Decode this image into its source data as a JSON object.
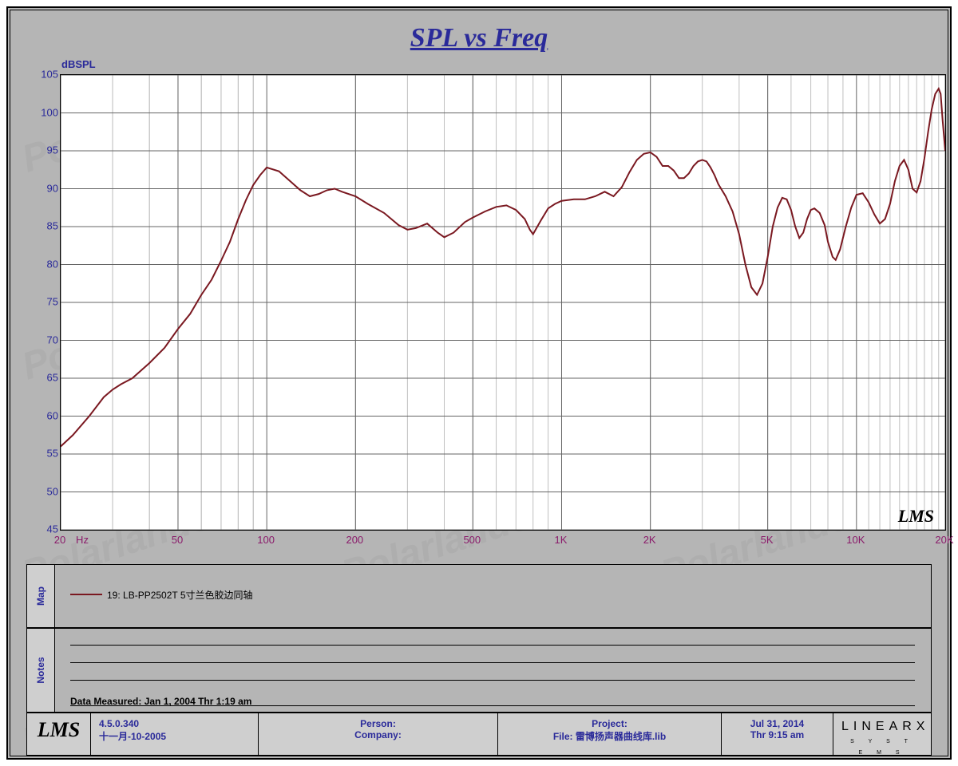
{
  "title": "SPL vs Freq",
  "title_color": "#2a2a9a",
  "title_fontsize": 34,
  "watermark_text": "Polarlander",
  "watermark_color": "rgba(120,120,120,.10)",
  "chart": {
    "type": "line",
    "background_color": "#ffffff",
    "frame_background": "#b5b5b5",
    "grid_color_major": "#646464",
    "grid_color_minor": "#bfbfbf",
    "line_color": "#7a1820",
    "line_width": 2,
    "y_axis": {
      "unit": "dBSPL",
      "min": 45,
      "max": 105,
      "tick_step": 5,
      "ticks": [
        45,
        50,
        55,
        60,
        65,
        70,
        75,
        80,
        85,
        90,
        95,
        100,
        105
      ],
      "label_color": "#2a2a9a",
      "label_fontsize": 13
    },
    "x_axis": {
      "unit": "Hz",
      "scale": "log",
      "min": 20,
      "max": 20000,
      "major_ticks": [
        20,
        50,
        100,
        200,
        500,
        1000,
        2000,
        5000,
        10000,
        20000
      ],
      "major_labels": [
        "20",
        "50",
        "100",
        "200",
        "500",
        "1K",
        "2K",
        "5K",
        "10K",
        "20K"
      ],
      "label_color": "#8a1a6a",
      "label_fontsize": 13
    },
    "series": [
      {
        "name": "19: LB-PP2502T 5寸兰色胶边同轴",
        "color": "#7a1820",
        "points": [
          [
            20,
            56
          ],
          [
            22,
            57.5
          ],
          [
            25,
            60
          ],
          [
            28,
            62.5
          ],
          [
            30,
            63.5
          ],
          [
            32,
            64.2
          ],
          [
            35,
            65
          ],
          [
            40,
            67
          ],
          [
            45,
            69
          ],
          [
            50,
            71.5
          ],
          [
            55,
            73.5
          ],
          [
            60,
            76
          ],
          [
            65,
            78
          ],
          [
            70,
            80.5
          ],
          [
            75,
            83
          ],
          [
            80,
            86
          ],
          [
            85,
            88.5
          ],
          [
            90,
            90.5
          ],
          [
            95,
            91.8
          ],
          [
            100,
            92.8
          ],
          [
            110,
            92.3
          ],
          [
            120,
            91
          ],
          [
            130,
            89.8
          ],
          [
            140,
            89
          ],
          [
            150,
            89.3
          ],
          [
            160,
            89.8
          ],
          [
            170,
            90
          ],
          [
            180,
            89.6
          ],
          [
            200,
            89
          ],
          [
            220,
            88
          ],
          [
            250,
            86.8
          ],
          [
            280,
            85.2
          ],
          [
            300,
            84.6
          ],
          [
            320,
            84.8
          ],
          [
            350,
            85.4
          ],
          [
            380,
            84.2
          ],
          [
            400,
            83.6
          ],
          [
            430,
            84.2
          ],
          [
            470,
            85.6
          ],
          [
            500,
            86.2
          ],
          [
            550,
            87
          ],
          [
            600,
            87.6
          ],
          [
            650,
            87.8
          ],
          [
            700,
            87.2
          ],
          [
            750,
            86
          ],
          [
            780,
            84.6
          ],
          [
            800,
            84
          ],
          [
            850,
            85.8
          ],
          [
            900,
            87.4
          ],
          [
            950,
            88
          ],
          [
            1000,
            88.4
          ],
          [
            1100,
            88.6
          ],
          [
            1200,
            88.6
          ],
          [
            1300,
            89
          ],
          [
            1400,
            89.6
          ],
          [
            1500,
            89
          ],
          [
            1600,
            90.2
          ],
          [
            1700,
            92.2
          ],
          [
            1800,
            93.8
          ],
          [
            1900,
            94.6
          ],
          [
            2000,
            94.8
          ],
          [
            2100,
            94.2
          ],
          [
            2200,
            93
          ],
          [
            2300,
            93
          ],
          [
            2400,
            92.4
          ],
          [
            2500,
            91.4
          ],
          [
            2600,
            91.4
          ],
          [
            2700,
            92
          ],
          [
            2800,
            93
          ],
          [
            2900,
            93.6
          ],
          [
            3000,
            93.8
          ],
          [
            3100,
            93.6
          ],
          [
            3200,
            92.8
          ],
          [
            3300,
            91.8
          ],
          [
            3400,
            90.6
          ],
          [
            3600,
            89
          ],
          [
            3800,
            87
          ],
          [
            4000,
            84
          ],
          [
            4200,
            80
          ],
          [
            4400,
            77
          ],
          [
            4600,
            76
          ],
          [
            4800,
            77.5
          ],
          [
            5000,
            81
          ],
          [
            5200,
            85
          ],
          [
            5400,
            87.5
          ],
          [
            5600,
            88.8
          ],
          [
            5800,
            88.6
          ],
          [
            6000,
            87.2
          ],
          [
            6200,
            85
          ],
          [
            6400,
            83.5
          ],
          [
            6600,
            84.2
          ],
          [
            6800,
            86
          ],
          [
            7000,
            87.2
          ],
          [
            7200,
            87.4
          ],
          [
            7500,
            86.8
          ],
          [
            7800,
            85.2
          ],
          [
            8000,
            83
          ],
          [
            8300,
            81
          ],
          [
            8500,
            80.6
          ],
          [
            8800,
            82
          ],
          [
            9200,
            85
          ],
          [
            9600,
            87.5
          ],
          [
            10000,
            89.2
          ],
          [
            10500,
            89.4
          ],
          [
            11000,
            88.2
          ],
          [
            11500,
            86.6
          ],
          [
            12000,
            85.4
          ],
          [
            12500,
            86
          ],
          [
            13000,
            88
          ],
          [
            13500,
            91
          ],
          [
            14000,
            93
          ],
          [
            14500,
            93.8
          ],
          [
            15000,
            92.5
          ],
          [
            15500,
            90
          ],
          [
            16000,
            89.5
          ],
          [
            16500,
            91
          ],
          [
            17000,
            94
          ],
          [
            17500,
            97.5
          ],
          [
            18000,
            100.5
          ],
          [
            18500,
            102.5
          ],
          [
            19000,
            103.2
          ],
          [
            19300,
            102.5
          ],
          [
            19600,
            99
          ],
          [
            20000,
            95
          ]
        ]
      }
    ],
    "corner_logo": "LMS"
  },
  "legend": {
    "tab_label": "Map",
    "tab_color": "#2a2a9a",
    "items": [
      {
        "color": "#7a1820",
        "label": "19: LB-PP2502T 5寸兰色胶边同轴"
      }
    ]
  },
  "notes": {
    "tab_label": "Notes",
    "tab_color": "#2a2a9a",
    "measured_label": "Data Measured: Jan  1, 2004  Thr  1:19 am"
  },
  "footer": {
    "lms_logo": "LMS",
    "version": "4.5.0.340",
    "build_date": "十一月-10-2005",
    "person_label": "Person:",
    "company_label": "Company:",
    "project_label": "Project:",
    "file_label": "File: 雷博扬声器曲线库.lib",
    "date": "Jul 31, 2014",
    "time": "Thr  9:15 am",
    "brand": "LINEAR",
    "brand_sub": "S Y S T E M S"
  }
}
